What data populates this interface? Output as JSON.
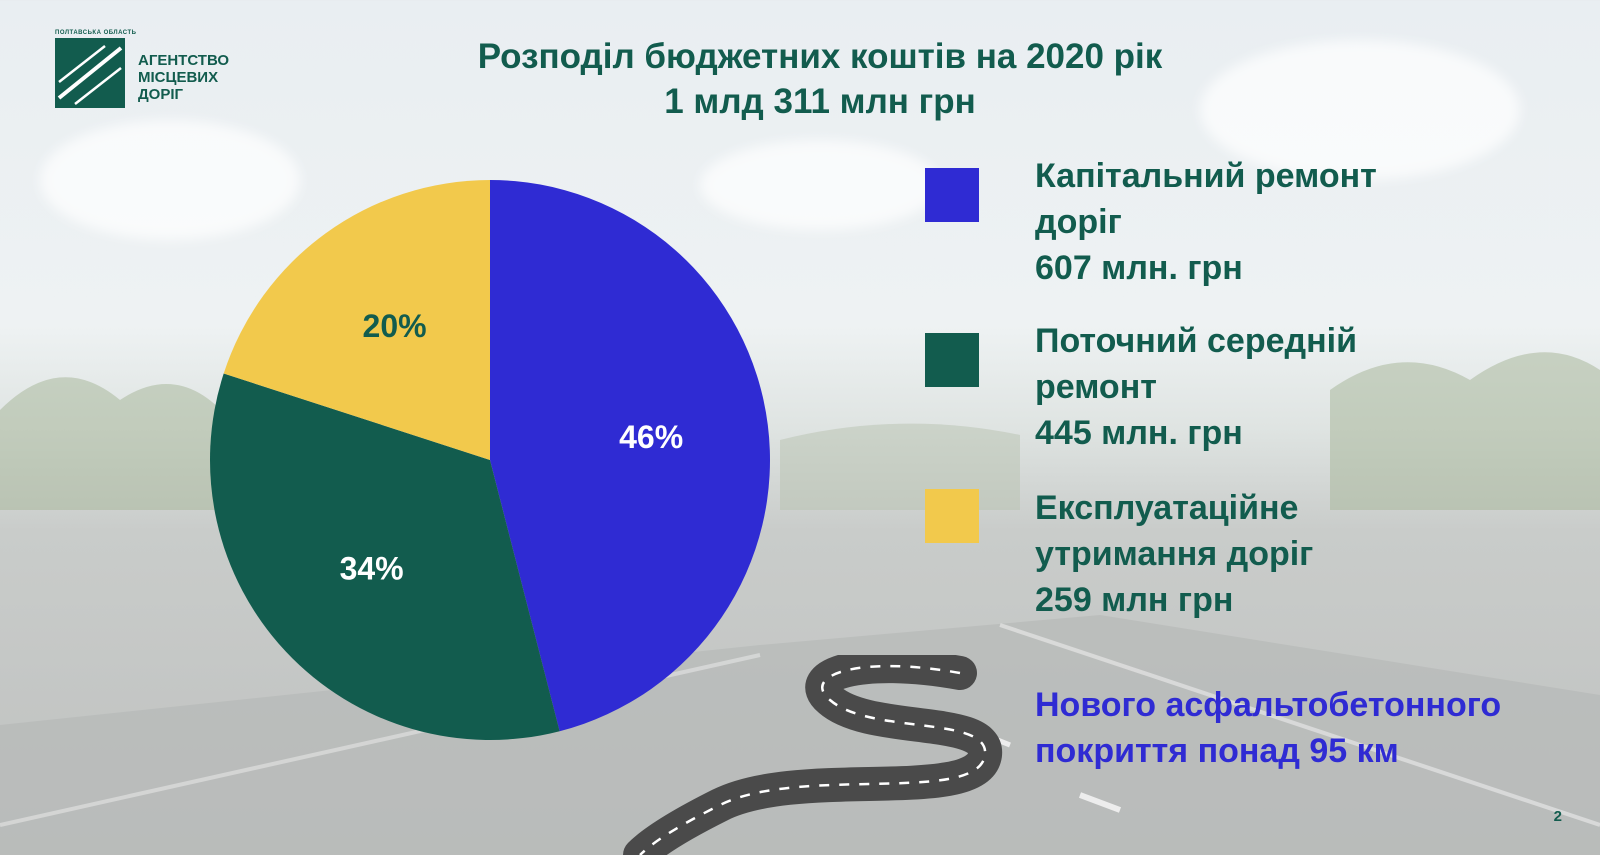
{
  "logo": {
    "region": "ПОЛТАВСЬКА ОБЛАСТЬ",
    "line1": "АГЕНТСТВО",
    "line2": "МІСЦЕВИХ",
    "line3": "ДОРІГ"
  },
  "title": {
    "line1": "Розподіл бюджетних коштів на 2020 рік",
    "line2": "1 млд 311 млн грн"
  },
  "legend": [
    {
      "line1": "Капітальний ремонт",
      "line2": "доріг",
      "line3": "607 млн. грн",
      "color": "#2f2bd3"
    },
    {
      "line1": "Поточний середній",
      "line2": "ремонт",
      "line3": "445 млн. грн",
      "color": "#125c4e"
    },
    {
      "line1": "Експлуатаційне",
      "line2": "утримання доріг",
      "line3": "259 млн грн",
      "color": "#f2c94c"
    }
  ],
  "highlight": {
    "line1": "Нового асфальтобетонного",
    "line2": "покриття  понад 95 км"
  },
  "page_number": "2",
  "chart_data": {
    "type": "pie",
    "categories": [
      "Капітальний ремонт доріг",
      "Поточний середній ремонт",
      "Експлуатаційне утримання доріг"
    ],
    "values": [
      46,
      34,
      20
    ],
    "labels": [
      "46%",
      "34%",
      "20%"
    ],
    "colors": [
      "#2f2bd3",
      "#125c4e",
      "#f2c94c"
    ],
    "label_colors": [
      "#ffffff",
      "#ffffff",
      "#125c4e"
    ],
    "start_angle": 0,
    "direction": "clockwise",
    "legend_position": "right"
  }
}
